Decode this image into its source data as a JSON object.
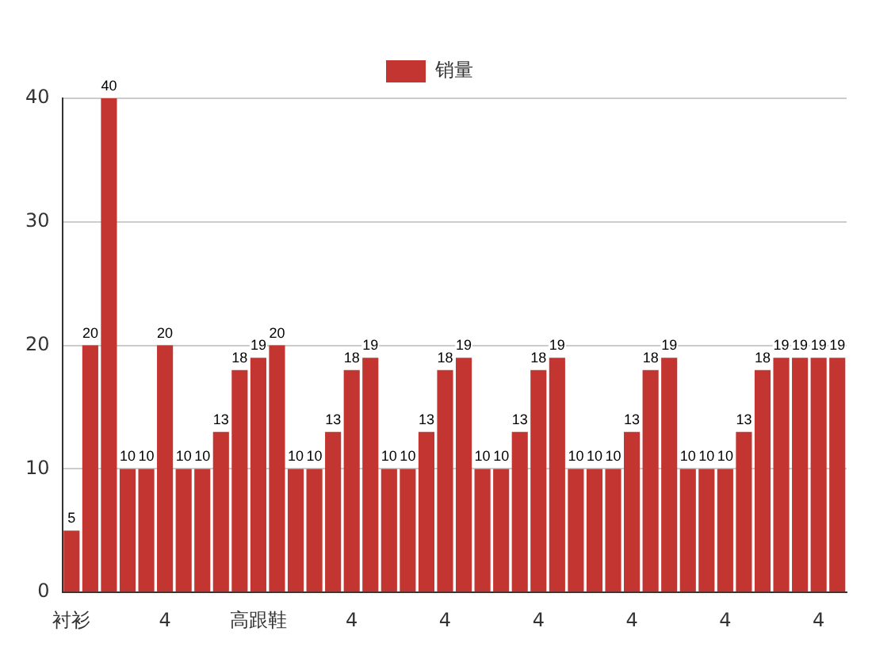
{
  "chart_data": {
    "type": "bar",
    "categories": [
      "衬衫",
      null,
      null,
      null,
      null,
      "4",
      null,
      null,
      null,
      null,
      "高跟鞋",
      null,
      null,
      null,
      null,
      "4",
      null,
      null,
      null,
      null,
      "4",
      null,
      null,
      null,
      null,
      "4",
      null,
      null,
      null,
      null,
      "4",
      null,
      null,
      null,
      null,
      "4",
      null,
      null,
      null,
      null,
      "4",
      null
    ],
    "series": [
      {
        "name": "销量",
        "color": "#c23531",
        "values": [
          5,
          20,
          40,
          10,
          10,
          20,
          10,
          10,
          13,
          18,
          19,
          20,
          10,
          10,
          13,
          18,
          19,
          10,
          10,
          13,
          18,
          19,
          10,
          10,
          13,
          18,
          19,
          10,
          10,
          10,
          13,
          18,
          19,
          10,
          10,
          10,
          13,
          18,
          19,
          19,
          19,
          19
        ]
      }
    ],
    "ylim": [
      0,
      40
    ],
    "yticks": [
      0,
      10,
      20,
      30,
      40
    ],
    "grid": "y",
    "legend": "top",
    "data_labels": true
  }
}
